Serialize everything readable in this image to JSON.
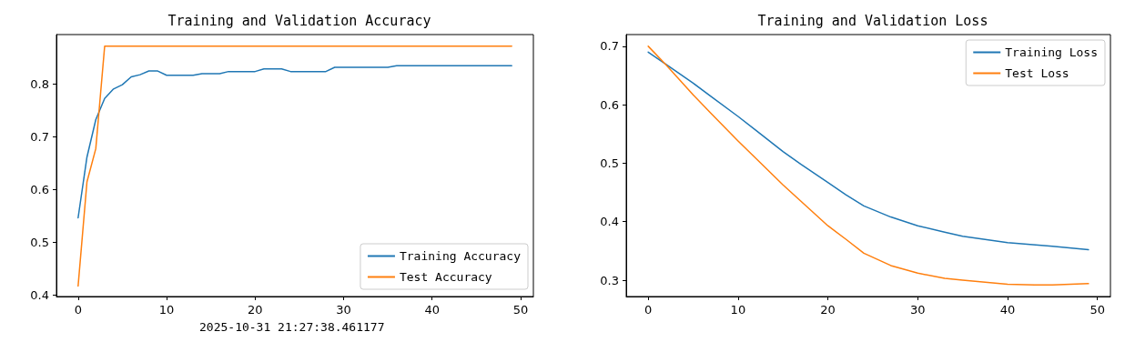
{
  "chart_data": [
    {
      "type": "line",
      "title": "Training and Validation Accuracy",
      "annotations": [
        "2025-10-31 21:27:38.461177"
      ],
      "xlim": [
        -2.45,
        51.45
      ],
      "xticks": [
        0,
        10,
        20,
        30,
        40,
        50
      ],
      "ylim": [
        0.397,
        0.893
      ],
      "yticks": [
        0.4,
        0.5,
        0.6,
        0.7,
        0.8
      ],
      "grid": false,
      "legend": "bottom right",
      "marker": "none",
      "line_style": "solid",
      "series": [
        {
          "name": "Training Accuracy",
          "color": "#1f77b4",
          "x": [
            0,
            1,
            2,
            3,
            4,
            5,
            6,
            7,
            8,
            9,
            10,
            13,
            14,
            16,
            17,
            20,
            21,
            23,
            24,
            28,
            29,
            35,
            36,
            49
          ],
          "values": [
            0.546,
            0.661,
            0.732,
            0.772,
            0.79,
            0.798,
            0.813,
            0.817,
            0.824,
            0.824,
            0.816,
            0.816,
            0.819,
            0.819,
            0.823,
            0.823,
            0.828,
            0.828,
            0.823,
            0.823,
            0.831,
            0.831,
            0.834,
            0.834
          ]
        },
        {
          "name": "Test Accuracy",
          "color": "#ff7f0e",
          "x": [
            0,
            1,
            2,
            3,
            49
          ],
          "values": [
            0.417,
            0.614,
            0.677,
            0.871,
            0.871
          ]
        }
      ]
    },
    {
      "type": "line",
      "title": "Training and Validation Loss",
      "xlim": [
        -2.45,
        51.45
      ],
      "xticks": [
        0,
        10,
        20,
        30,
        40,
        50
      ],
      "ylim": [
        0.272,
        0.72
      ],
      "yticks": [
        0.3,
        0.4,
        0.5,
        0.6,
        0.7
      ],
      "grid": false,
      "legend": "top right",
      "marker": "none",
      "line_style": "solid",
      "series": [
        {
          "name": "Training Loss",
          "color": "#1f77b4",
          "x": [
            0,
            2,
            5,
            7,
            10,
            12,
            15,
            17,
            20,
            22,
            24,
            27,
            30,
            33,
            35,
            40,
            45,
            49
          ],
          "values": [
            0.69,
            0.669,
            0.637,
            0.614,
            0.58,
            0.556,
            0.52,
            0.498,
            0.467,
            0.446,
            0.427,
            0.408,
            0.393,
            0.382,
            0.375,
            0.364,
            0.358,
            0.352
          ]
        },
        {
          "name": "Test Loss",
          "color": "#ff7f0e",
          "x": [
            0,
            2,
            5,
            7,
            10,
            12,
            15,
            17,
            20,
            22,
            24,
            27,
            30,
            33,
            35,
            40,
            43,
            45,
            49
          ],
          "values": [
            0.7,
            0.668,
            0.617,
            0.585,
            0.538,
            0.508,
            0.463,
            0.435,
            0.393,
            0.37,
            0.346,
            0.325,
            0.312,
            0.303,
            0.3,
            0.293,
            0.292,
            0.292,
            0.294
          ]
        }
      ]
    }
  ]
}
